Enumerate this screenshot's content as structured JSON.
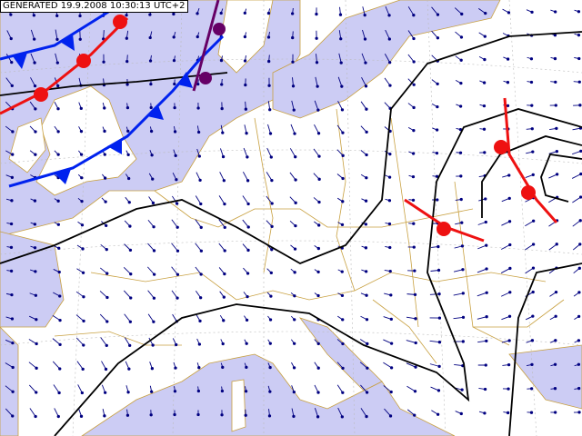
{
  "header": {
    "label": "GENERATED 19.9.2008 10:30:13 UTC+2"
  }
}
